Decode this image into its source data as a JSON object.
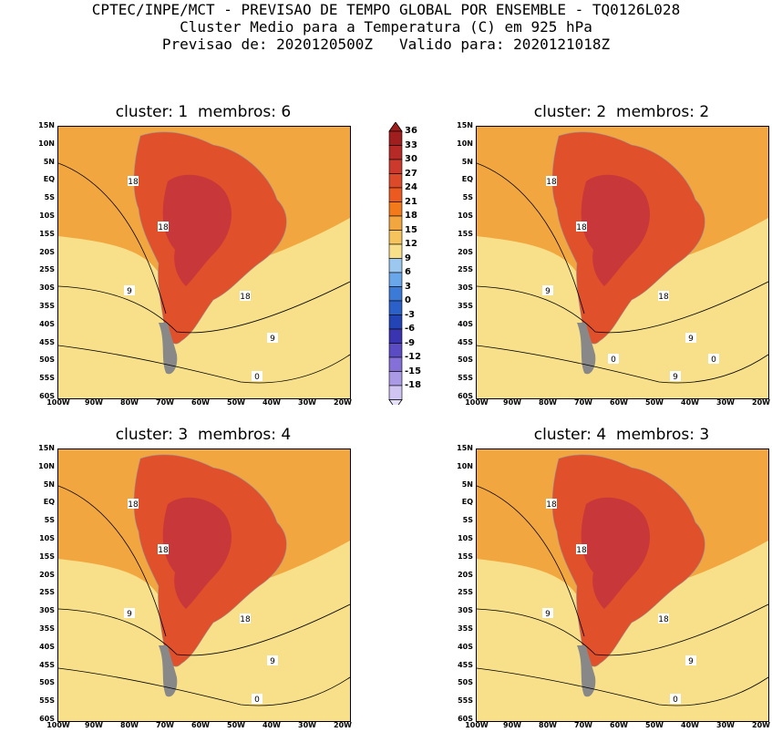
{
  "header": {
    "line1": "CPTEC/INPE/MCT - PREVISAO DE TEMPO GLOBAL POR ENSEMBLE - TQ0126L028",
    "line2": "Cluster Medio para a Temperatura (C) em 925 hPa",
    "line3": "Previsao de: 2020120500Z   Valido para: 2020121018Z"
  },
  "panels": [
    {
      "title": "cluster: 1  membros: 6",
      "contour_labels": [
        "18",
        "18",
        "18",
        "9",
        "9",
        "0"
      ]
    },
    {
      "title": "cluster: 2  membros: 2",
      "contour_labels": [
        "18",
        "18",
        "18",
        "9",
        "9",
        "9",
        "0",
        "0"
      ]
    },
    {
      "title": "cluster: 3  membros: 4",
      "contour_labels": [
        "18",
        "18",
        "18",
        "9",
        "9",
        "0"
      ]
    },
    {
      "title": "cluster: 4  membros: 3",
      "contour_labels": [
        "18",
        "18",
        "18",
        "9",
        "9",
        "0"
      ]
    }
  ],
  "lat_ticks": [
    "15N",
    "10N",
    "5N",
    "EQ",
    "5S",
    "10S",
    "15S",
    "20S",
    "25S",
    "30S",
    "35S",
    "40S",
    "45S",
    "50S",
    "55S",
    "60S"
  ],
  "lon_ticks": [
    "100W",
    "90W",
    "80W",
    "70W",
    "60W",
    "50W",
    "40W",
    "30W",
    "20W"
  ],
  "colorbar": {
    "labels": [
      "36",
      "33",
      "30",
      "27",
      "24",
      "21",
      "18",
      "15",
      "12",
      "9",
      "6",
      "3",
      "0",
      "-3",
      "-6",
      "-9",
      "-12",
      "-15",
      "-18"
    ],
    "colors": [
      "#a01e1e",
      "#b52a26",
      "#cc3a2e",
      "#dc4a2a",
      "#ec5a22",
      "#f27a1a",
      "#f2a640",
      "#f6c45c",
      "#f8e08a",
      "#9cc8f0",
      "#6aa6ea",
      "#3c7ad8",
      "#2a60c8",
      "#2244b4",
      "#3a34b0",
      "#5c4cc4",
      "#8470d6",
      "#aa9ae6",
      "#cfc4f2"
    ]
  },
  "colors": {
    "warm_land": "#e0502a",
    "hot_core": "#c8383a",
    "ocean_tropics": "#f2a640",
    "ocean_subtropics": "#f8e08a",
    "ocean_cool": "#9cc8f0",
    "ocean_cold": "#3c7ad8",
    "ocean_polar": "#2a4cb8"
  }
}
